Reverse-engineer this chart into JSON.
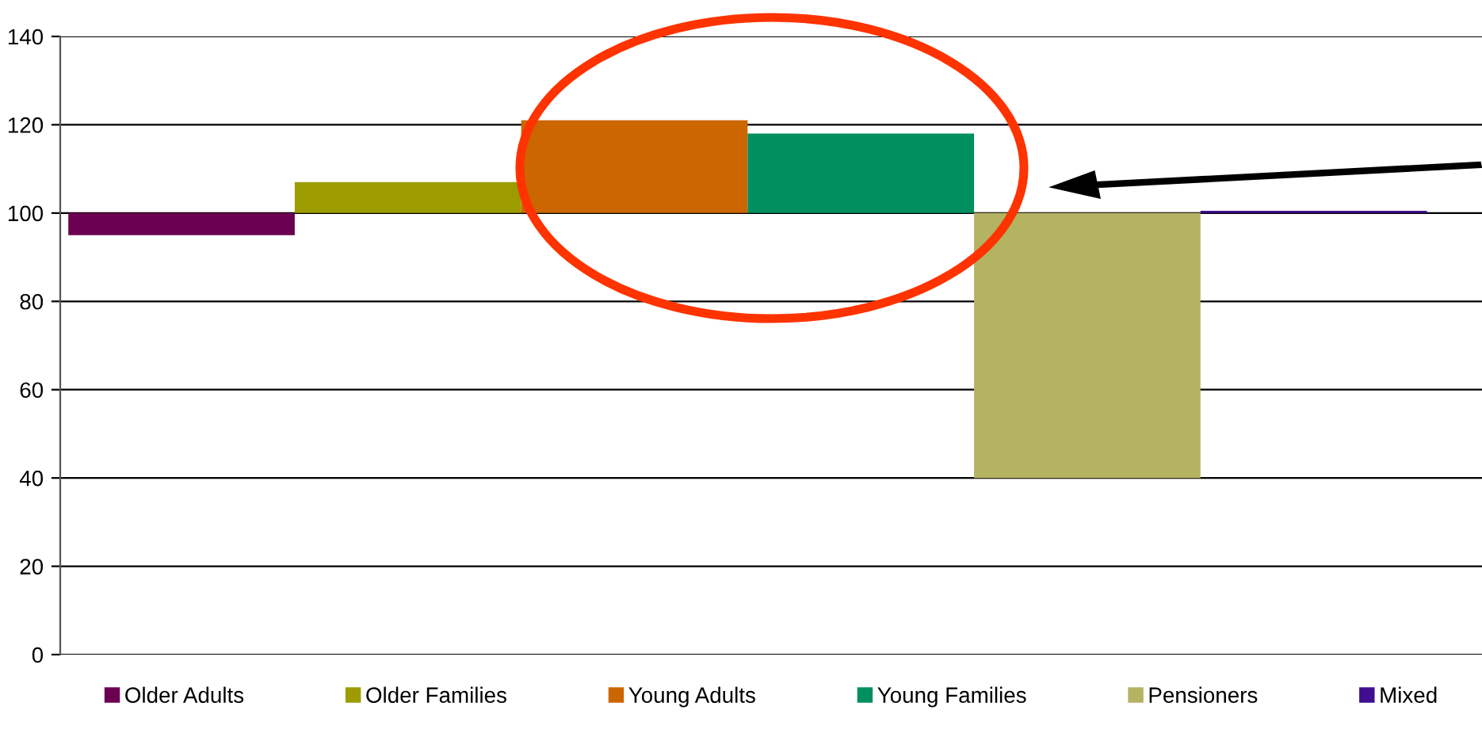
{
  "chart_data": {
    "type": "bar",
    "categories": [
      null
    ],
    "series": [
      {
        "name": "Older Adults",
        "color": "#6b0050",
        "values": [
          -5
        ],
        "base": [
          100
        ]
      },
      {
        "name": "Older Families",
        "color": "#9c9c00",
        "values": [
          7
        ],
        "base": [
          100
        ]
      },
      {
        "name": "Young Adults",
        "color": "#cc6600",
        "values": [
          21
        ],
        "base": [
          100
        ]
      },
      {
        "name": "Young Families",
        "color": "#008f5e",
        "values": [
          18
        ],
        "base": [
          100
        ]
      },
      {
        "name": "Pensioners",
        "color": "#b3b362",
        "values": [
          -60
        ],
        "base": [
          100
        ]
      },
      {
        "name": "Mixed",
        "color": "#3f0f8f",
        "values": [
          0.5
        ],
        "base": [
          100
        ]
      }
    ],
    "ylim": [
      0,
      140
    ],
    "yticks": [
      0,
      20,
      40,
      60,
      80,
      100,
      120,
      140
    ],
    "grid": "y",
    "legend": "bottom"
  }
}
